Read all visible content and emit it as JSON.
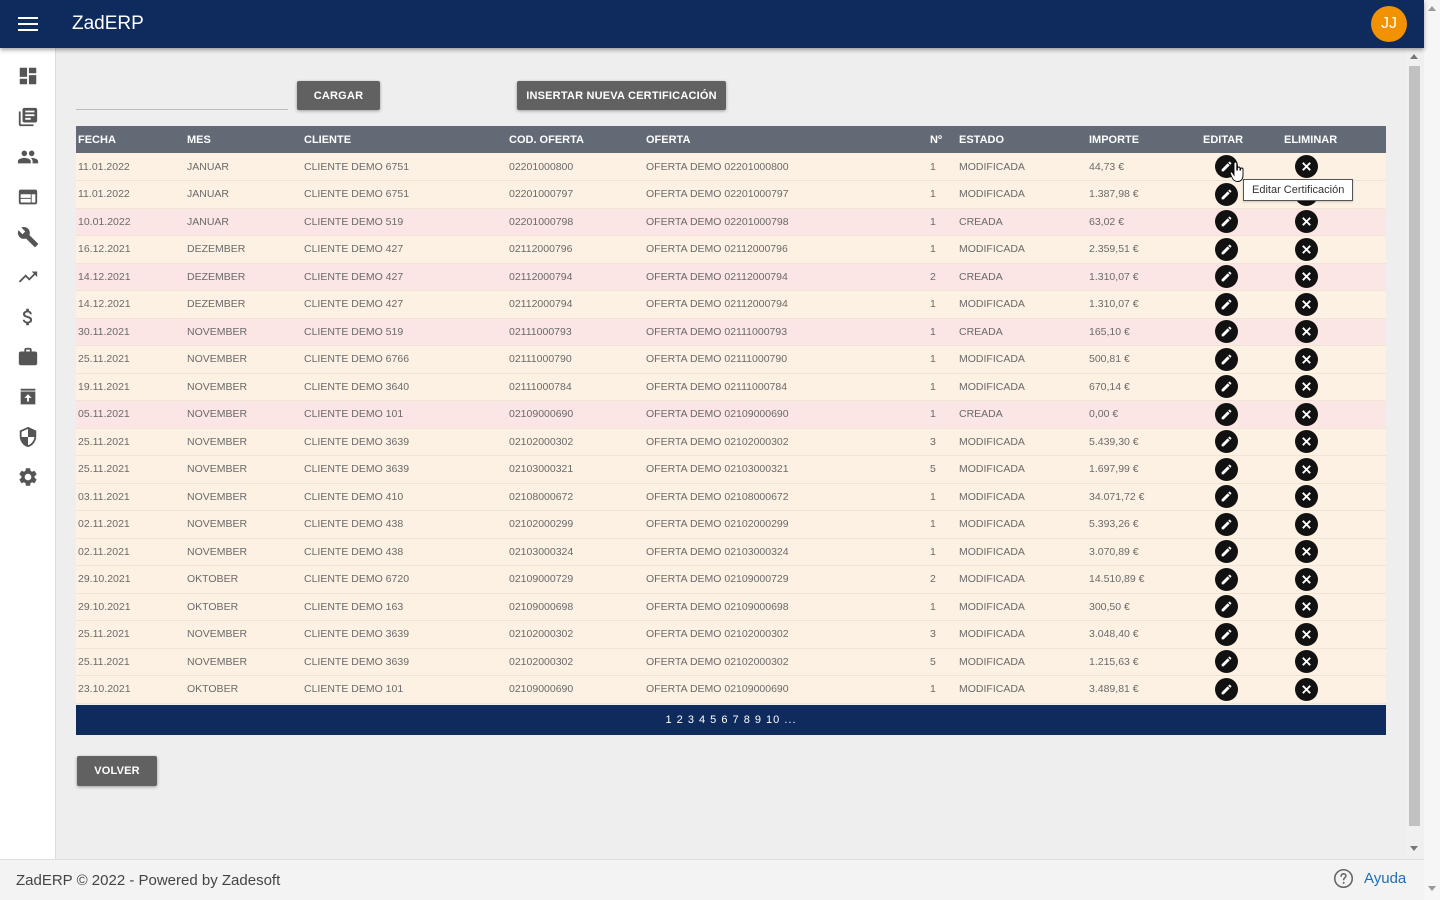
{
  "app": {
    "title": "ZadERP",
    "avatar_initials": "JJ"
  },
  "sidebar": {
    "items": [
      {
        "icon": "dashboard-icon"
      },
      {
        "icon": "library-books-icon"
      },
      {
        "icon": "people-icon"
      },
      {
        "icon": "web-icon"
      },
      {
        "icon": "wrench-icon"
      },
      {
        "icon": "trending-up-icon"
      },
      {
        "icon": "dollar-icon"
      },
      {
        "icon": "briefcase-icon"
      },
      {
        "icon": "archive-icon"
      },
      {
        "icon": "shield-icon"
      },
      {
        "icon": "gear-icon"
      }
    ]
  },
  "toolbar": {
    "cargar_label": "CARGAR",
    "insertar_label": "INSERTAR NUEVA CERTIFICACIÓN"
  },
  "table": {
    "headers": {
      "fecha": "FECHA",
      "mes": "MES",
      "cliente": "CLIENTE",
      "cod_oferta": "COD. OFERTA",
      "oferta": "OFERTA",
      "num": "Nº",
      "estado": "ESTADO",
      "importe": "IMPORTE",
      "editar": "EDITAR",
      "eliminar": "ELIMINAR"
    },
    "rows": [
      {
        "fecha": "11.01.2022",
        "mes": "JANUAR",
        "cliente": "CLIENTE DEMO 6751",
        "cod": "02201000800",
        "oferta": "OFERTA DEMO 02201000800",
        "num": "1",
        "estado": "MODIFICADA",
        "importe": "44,73 €"
      },
      {
        "fecha": "11.01.2022",
        "mes": "JANUAR",
        "cliente": "CLIENTE DEMO 6751",
        "cod": "02201000797",
        "oferta": "OFERTA DEMO 02201000797",
        "num": "1",
        "estado": "MODIFICADA",
        "importe": "1.387,98 €"
      },
      {
        "fecha": "10.01.2022",
        "mes": "JANUAR",
        "cliente": "CLIENTE DEMO 519",
        "cod": "02201000798",
        "oferta": "OFERTA DEMO 02201000798",
        "num": "1",
        "estado": "CREADA",
        "importe": "63,02 €"
      },
      {
        "fecha": "16.12.2021",
        "mes": "DEZEMBER",
        "cliente": "CLIENTE DEMO 427",
        "cod": "02112000796",
        "oferta": "OFERTA DEMO 02112000796",
        "num": "1",
        "estado": "MODIFICADA",
        "importe": "2.359,51 €"
      },
      {
        "fecha": "14.12.2021",
        "mes": "DEZEMBER",
        "cliente": "CLIENTE DEMO 427",
        "cod": "02112000794",
        "oferta": "OFERTA DEMO 02112000794",
        "num": "2",
        "estado": "CREADA",
        "importe": "1.310,07 €"
      },
      {
        "fecha": "14.12.2021",
        "mes": "DEZEMBER",
        "cliente": "CLIENTE DEMO 427",
        "cod": "02112000794",
        "oferta": "OFERTA DEMO 02112000794",
        "num": "1",
        "estado": "MODIFICADA",
        "importe": "1.310,07 €"
      },
      {
        "fecha": "30.11.2021",
        "mes": "NOVEMBER",
        "cliente": "CLIENTE DEMO 519",
        "cod": "02111000793",
        "oferta": "OFERTA DEMO 02111000793",
        "num": "1",
        "estado": "CREADA",
        "importe": "165,10 €"
      },
      {
        "fecha": "25.11.2021",
        "mes": "NOVEMBER",
        "cliente": "CLIENTE DEMO 6766",
        "cod": "02111000790",
        "oferta": "OFERTA DEMO 02111000790",
        "num": "1",
        "estado": "MODIFICADA",
        "importe": "500,81 €"
      },
      {
        "fecha": "19.11.2021",
        "mes": "NOVEMBER",
        "cliente": "CLIENTE DEMO 3640",
        "cod": "02111000784",
        "oferta": "OFERTA DEMO 02111000784",
        "num": "1",
        "estado": "MODIFICADA",
        "importe": "670,14 €"
      },
      {
        "fecha": "05.11.2021",
        "mes": "NOVEMBER",
        "cliente": "CLIENTE DEMO 101",
        "cod": "02109000690",
        "oferta": "OFERTA DEMO 02109000690",
        "num": "1",
        "estado": "CREADA",
        "importe": "0,00 €"
      },
      {
        "fecha": "25.11.2021",
        "mes": "NOVEMBER",
        "cliente": "CLIENTE DEMO 3639",
        "cod": "02102000302",
        "oferta": "OFERTA DEMO 02102000302",
        "num": "3",
        "estado": "MODIFICADA",
        "importe": "5.439,30 €"
      },
      {
        "fecha": "25.11.2021",
        "mes": "NOVEMBER",
        "cliente": "CLIENTE DEMO 3639",
        "cod": "02103000321",
        "oferta": "OFERTA DEMO 02103000321",
        "num": "5",
        "estado": "MODIFICADA",
        "importe": "1.697,99 €"
      },
      {
        "fecha": "03.11.2021",
        "mes": "NOVEMBER",
        "cliente": "CLIENTE DEMO 410",
        "cod": "02108000672",
        "oferta": "OFERTA DEMO 02108000672",
        "num": "1",
        "estado": "MODIFICADA",
        "importe": "34.071,72 €"
      },
      {
        "fecha": "02.11.2021",
        "mes": "NOVEMBER",
        "cliente": "CLIENTE DEMO 438",
        "cod": "02102000299",
        "oferta": "OFERTA DEMO 02102000299",
        "num": "1",
        "estado": "MODIFICADA",
        "importe": "5.393,26 €"
      },
      {
        "fecha": "02.11.2021",
        "mes": "NOVEMBER",
        "cliente": "CLIENTE DEMO 438",
        "cod": "02103000324",
        "oferta": "OFERTA DEMO 02103000324",
        "num": "1",
        "estado": "MODIFICADA",
        "importe": "3.070,89 €"
      },
      {
        "fecha": "29.10.2021",
        "mes": "OKTOBER",
        "cliente": "CLIENTE DEMO 6720",
        "cod": "02109000729",
        "oferta": "OFERTA DEMO 02109000729",
        "num": "2",
        "estado": "MODIFICADA",
        "importe": "14.510,89 €"
      },
      {
        "fecha": "29.10.2021",
        "mes": "OKTOBER",
        "cliente": "CLIENTE DEMO 163",
        "cod": "02109000698",
        "oferta": "OFERTA DEMO 02109000698",
        "num": "1",
        "estado": "MODIFICADA",
        "importe": "300,50 €"
      },
      {
        "fecha": "25.11.2021",
        "mes": "NOVEMBER",
        "cliente": "CLIENTE DEMO 3639",
        "cod": "02102000302",
        "oferta": "OFERTA DEMO 02102000302",
        "num": "3",
        "estado": "MODIFICADA",
        "importe": "3.048,40 €"
      },
      {
        "fecha": "25.11.2021",
        "mes": "NOVEMBER",
        "cliente": "CLIENTE DEMO 3639",
        "cod": "02102000302",
        "oferta": "OFERTA DEMO 02102000302",
        "num": "5",
        "estado": "MODIFICADA",
        "importe": "1.215,63 €"
      },
      {
        "fecha": "23.10.2021",
        "mes": "OKTOBER",
        "cliente": "CLIENTE DEMO 101",
        "cod": "02109000690",
        "oferta": "OFERTA DEMO 02109000690",
        "num": "1",
        "estado": "MODIFICADA",
        "importe": "3.489,81 €"
      }
    ],
    "pager_text": "1 2 3 4 5 6 7 8 9 10 ..."
  },
  "tooltip": {
    "text": "Editar Certificación"
  },
  "actions": {
    "volver_label": "VOLVER"
  },
  "footer": {
    "text": "ZadERP © 2022 - Powered by Zadesoft",
    "help_label": "Ayuda"
  },
  "colors": {
    "primary": "#0f2b5e",
    "accent": "#f39200",
    "row_modificada": "#fdf1e3",
    "row_creada": "#fbe5e5",
    "header": "#616a75"
  }
}
